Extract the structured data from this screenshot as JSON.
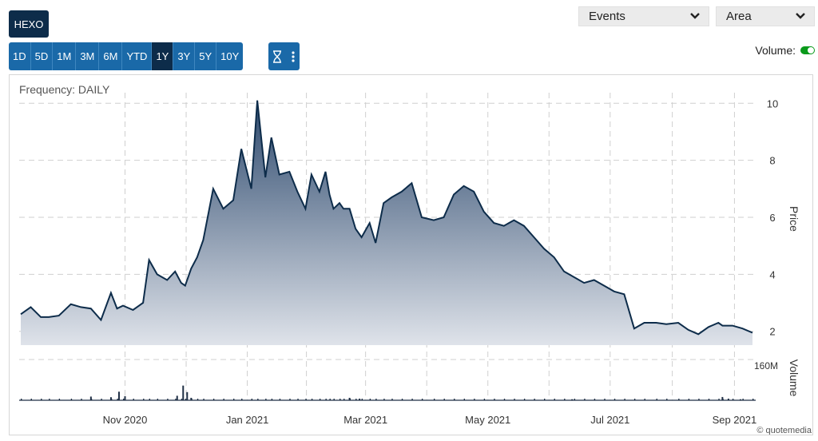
{
  "ticker": "HEXO",
  "ranges": [
    "1D",
    "5D",
    "1M",
    "3M",
    "6M",
    "YTD",
    "1Y",
    "3Y",
    "5Y",
    "10Y"
  ],
  "active_range": "1Y",
  "events_select": "Events",
  "chart_type_select": "Area",
  "volume_label": "Volume:",
  "volume_on": true,
  "frequency_label": "Frequency: DAILY",
  "watermark": "© quotemedia",
  "colors": {
    "line": "#0d2c4a",
    "fill_top": "#2e4a6e",
    "fill_bottom": "#dfe3ea",
    "accent": "#1a69a8",
    "toggle": "#0a9a1b"
  },
  "chart_data": {
    "type": "area",
    "y_ticks": [
      2,
      4,
      6,
      8,
      10
    ],
    "ylim": [
      1.6,
      10.4
    ],
    "ylabel": "Price",
    "volume_label": "Volume",
    "volume_tick": "160M",
    "volume_max": 200,
    "x_labels": [
      "Nov 2020",
      "Jan 2021",
      "Mar 2021",
      "May 2021",
      "Jul 2021",
      "Sep 2021"
    ],
    "x": [
      "2020-09-10",
      "2020-09-15",
      "2020-09-20",
      "2020-09-24",
      "2020-09-29",
      "2020-10-05",
      "2020-10-10",
      "2020-10-15",
      "2020-10-20",
      "2020-10-25",
      "2020-10-28",
      "2020-10-31",
      "2020-11-05",
      "2020-11-10",
      "2020-11-13",
      "2020-11-17",
      "2020-11-22",
      "2020-11-26",
      "2020-11-29",
      "2020-12-01",
      "2020-12-04",
      "2020-12-07",
      "2020-12-10",
      "2020-12-15",
      "2020-12-20",
      "2020-12-25",
      "2020-12-29",
      "2021-01-03",
      "2021-01-06",
      "2021-01-10",
      "2021-01-13",
      "2021-01-17",
      "2021-01-22",
      "2021-01-26",
      "2021-01-30",
      "2021-02-02",
      "2021-02-06",
      "2021-02-09",
      "2021-02-11",
      "2021-02-13",
      "2021-02-16",
      "2021-02-18",
      "2021-02-21",
      "2021-02-24",
      "2021-02-27",
      "2021-03-03",
      "2021-03-06",
      "2021-03-10",
      "2021-03-14",
      "2021-03-19",
      "2021-03-24",
      "2021-03-29",
      "2021-04-04",
      "2021-04-09",
      "2021-04-14",
      "2021-04-19",
      "2021-04-24",
      "2021-04-29",
      "2021-05-04",
      "2021-05-09",
      "2021-05-14",
      "2021-05-19",
      "2021-05-24",
      "2021-05-29",
      "2021-06-03",
      "2021-06-08",
      "2021-06-13",
      "2021-06-18",
      "2021-06-23",
      "2021-06-28",
      "2021-07-03",
      "2021-07-08",
      "2021-07-13",
      "2021-07-18",
      "2021-07-24",
      "2021-07-29",
      "2021-08-04",
      "2021-08-09",
      "2021-08-14",
      "2021-08-19",
      "2021-08-24",
      "2021-08-26",
      "2021-08-31",
      "2021-09-05",
      "2021-09-10"
    ],
    "close": [
      2.6,
      2.85,
      2.5,
      2.5,
      2.55,
      2.95,
      2.85,
      2.8,
      2.4,
      3.35,
      2.8,
      2.9,
      2.75,
      3.0,
      4.5,
      4.0,
      3.8,
      4.1,
      3.7,
      3.6,
      4.2,
      4.6,
      5.2,
      7.0,
      6.3,
      6.6,
      8.4,
      7.0,
      10.1,
      7.4,
      8.8,
      7.5,
      7.6,
      6.9,
      6.3,
      7.5,
      6.9,
      7.6,
      6.8,
      6.3,
      6.5,
      6.3,
      6.3,
      5.6,
      5.3,
      5.8,
      5.1,
      6.5,
      6.7,
      6.9,
      7.2,
      6.0,
      5.9,
      6.0,
      6.8,
      7.1,
      6.9,
      6.2,
      5.8,
      5.7,
      5.9,
      5.7,
      5.3,
      4.9,
      4.6,
      4.1,
      3.9,
      3.7,
      3.8,
      3.6,
      3.4,
      3.3,
      2.1,
      2.3,
      2.3,
      2.25,
      2.3,
      2.05,
      1.9,
      2.15,
      2.3,
      2.2,
      2.2,
      2.1,
      1.95
    ],
    "volume_dates": [
      "2020-10-15",
      "2020-10-25",
      "2020-10-29",
      "2020-11-01",
      "2020-11-27",
      "2020-11-30",
      "2020-12-02",
      "2020-12-04",
      "2021-02-21",
      "2021-02-26",
      "2021-06-12",
      "2021-08-26",
      "2021-08-29",
      "2021-09-04"
    ],
    "volume_values": [
      18,
      15,
      42,
      20,
      22,
      72,
      40,
      12,
      12,
      8,
      5,
      16,
      8,
      5
    ]
  }
}
